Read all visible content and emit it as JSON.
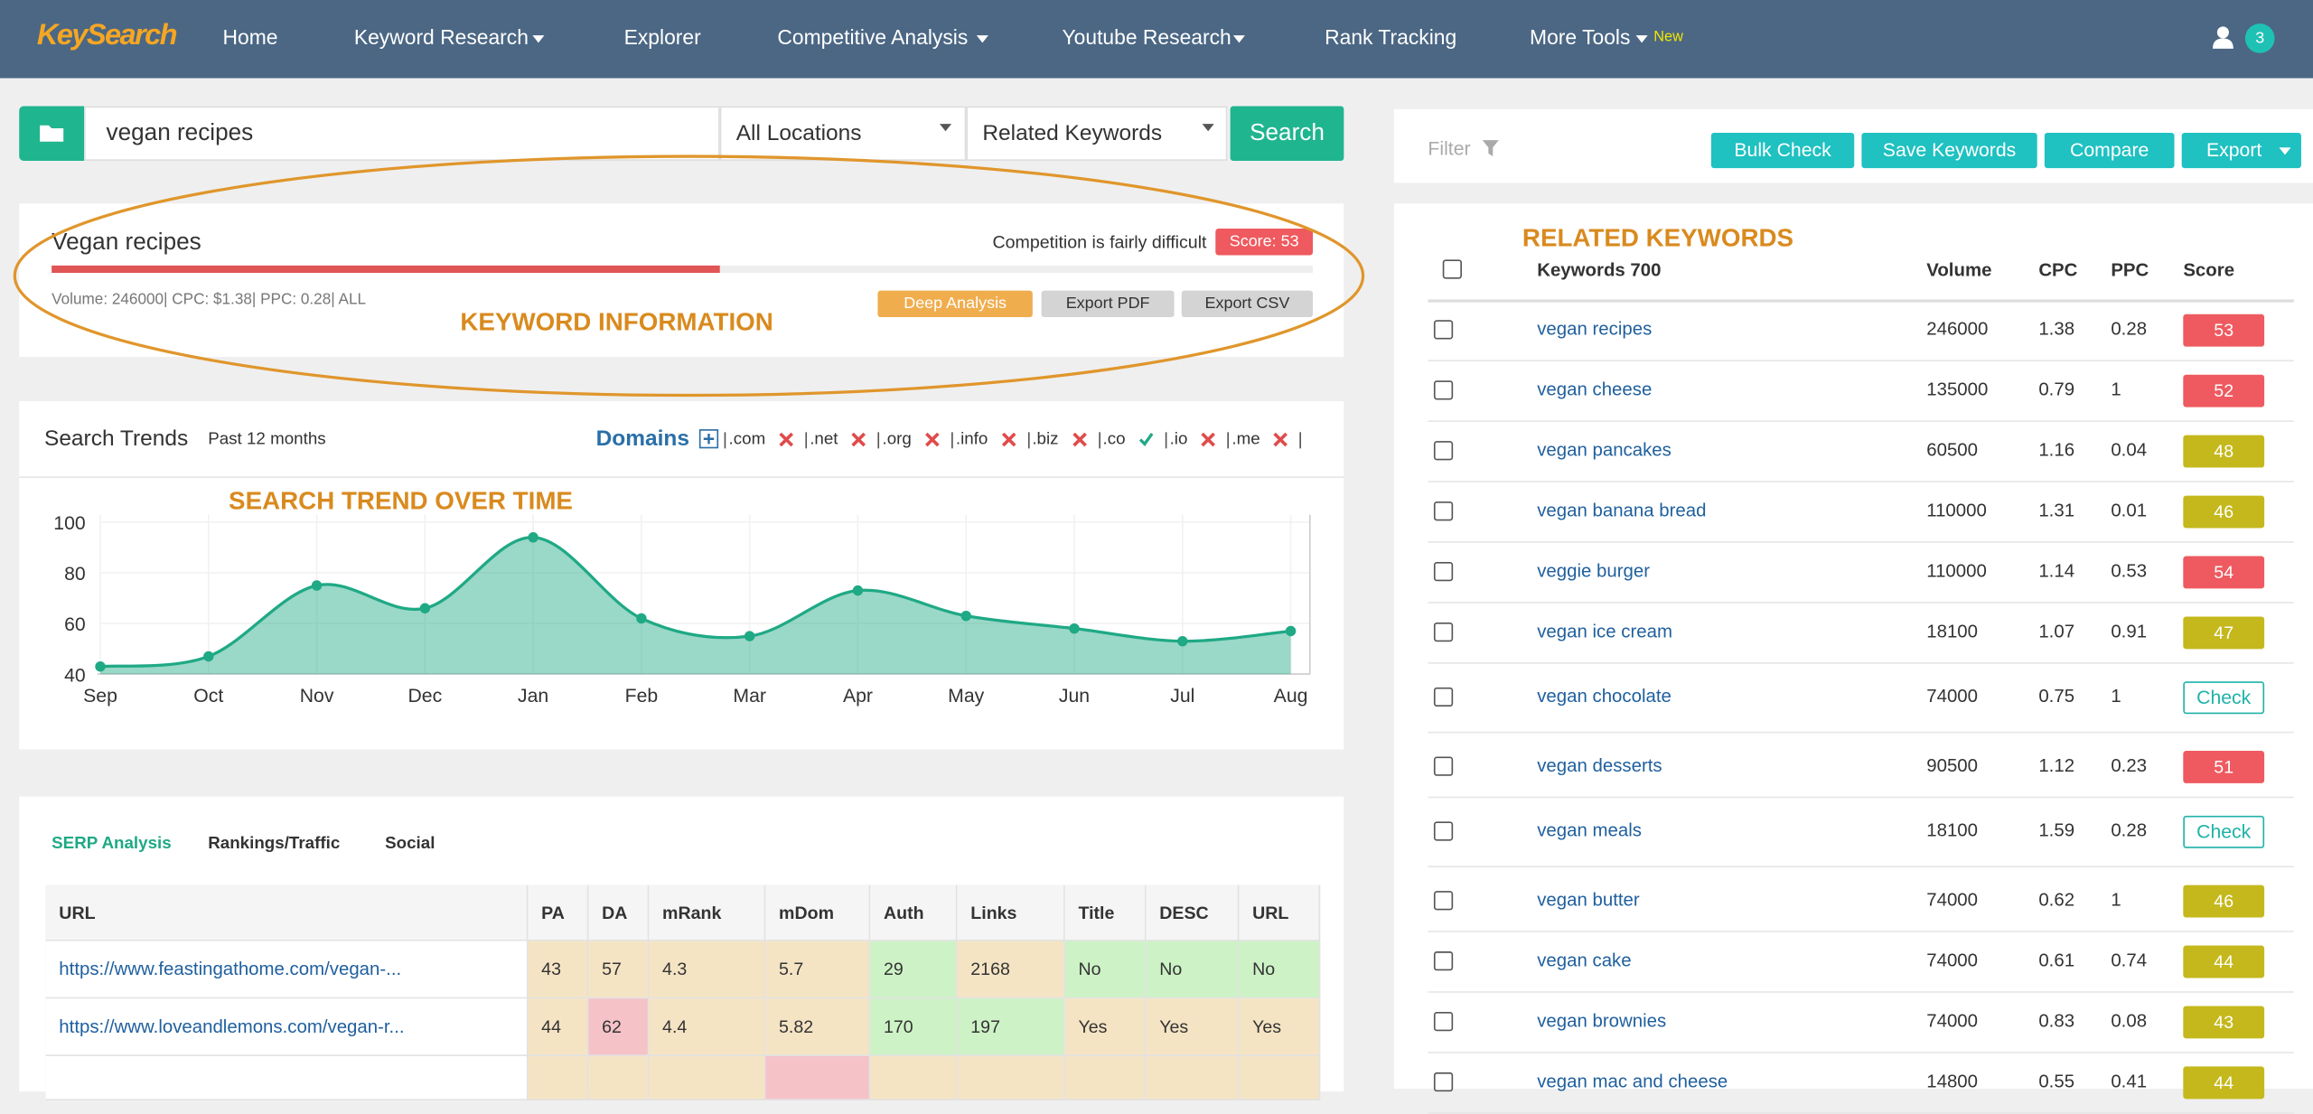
{
  "nav": {
    "logo": "KeySearch",
    "items": [
      "Home",
      "Keyword Research",
      "Explorer",
      "Competitive Analysis",
      "Youtube Research",
      "Rank Tracking",
      "More Tools"
    ],
    "new_badge": "New",
    "notifications": "3"
  },
  "search": {
    "query": "vegan recipes",
    "location": "All Locations",
    "mode": "Related Keywords",
    "button": "Search"
  },
  "keyword_info": {
    "title": "Vegan recipes",
    "competition": "Competition is fairly difficult",
    "score": 53,
    "score_label": "Score: 53",
    "stats": "Volume: 246000| CPC: $1.38| PPC: 0.28| ALL",
    "buttons": [
      "Deep Analysis",
      "Export PDF",
      "Export CSV"
    ],
    "annotation": "KEYWORD INFORMATION"
  },
  "trends": {
    "title": "Search Trends",
    "subtitle": "Past 12 months",
    "domains_label": "Domains",
    "domains": [
      {
        "name": ".com",
        "available": false
      },
      {
        "name": ".net",
        "available": false
      },
      {
        "name": ".org",
        "available": false
      },
      {
        "name": ".info",
        "available": false
      },
      {
        "name": ".biz",
        "available": false
      },
      {
        "name": ".co",
        "available": true
      },
      {
        "name": ".io",
        "available": false
      },
      {
        "name": ".me",
        "available": false
      }
    ],
    "annotation": "SEARCH TREND OVER TIME",
    "chart_data": {
      "type": "area",
      "categories": [
        "Sep",
        "Oct",
        "Nov",
        "Dec",
        "Jan",
        "Feb",
        "Mar",
        "Apr",
        "May",
        "Jun",
        "Jul",
        "Aug"
      ],
      "values": [
        43,
        47,
        75,
        66,
        94,
        62,
        55,
        73,
        63,
        58,
        53,
        57
      ],
      "ylim": [
        40,
        100
      ],
      "yticks": [
        40,
        60,
        80,
        100
      ],
      "color": "#1fa985"
    }
  },
  "serp": {
    "tabs": [
      "SERP Analysis",
      "Rankings/Traffic",
      "Social"
    ],
    "columns": [
      "URL",
      "PA",
      "DA",
      "mRank",
      "mDom",
      "Auth",
      "Links",
      "Title",
      "DESC",
      "URL"
    ],
    "rows": [
      [
        "https://www.feastingathome.com/vegan-...",
        43,
        57,
        4.3,
        5.7,
        29,
        2168,
        "No",
        "No",
        "No"
      ],
      [
        "https://www.loveandlemons.com/vegan-r...",
        44,
        62,
        4.4,
        5.82,
        170,
        197,
        "Yes",
        "Yes",
        "Yes"
      ]
    ],
    "cell_colors": [
      [
        "#ffffff",
        "#f5e4c4",
        "#f5e4c4",
        "#f5e4c4",
        "#f5e4c4",
        "#cdf2c6",
        "#f5e4c4",
        "#cdf2c6",
        "#cdf2c6",
        "#cdf2c6"
      ],
      [
        "#ffffff",
        "#f5e4c4",
        "#f5c2c8",
        "#f5e4c4",
        "#f5e4c4",
        "#cdf2c6",
        "#cdf2c6",
        "#f5e4c4",
        "#f5e4c4",
        "#f5e4c4"
      ]
    ]
  },
  "filter": {
    "label": "Filter",
    "buttons": [
      "Bulk Check",
      "Save Keywords",
      "Compare",
      "Export"
    ]
  },
  "related": {
    "annotation": "RELATED KEYWORDS",
    "columns": [
      "Keywords 700",
      "Volume",
      "CPC",
      "PPC",
      "Score"
    ],
    "rows": [
      {
        "keyword": "vegan recipes",
        "volume": 246000,
        "cpc": 1.38,
        "ppc": 0.28,
        "score": 53,
        "score_color": "#ee5a5f"
      },
      {
        "keyword": "vegan cheese",
        "volume": 135000,
        "cpc": 0.79,
        "ppc": 1,
        "score": 52,
        "score_color": "#ee5a5f"
      },
      {
        "keyword": "vegan pancakes",
        "volume": 60500,
        "cpc": 1.16,
        "ppc": 0.04,
        "score": 48,
        "score_color": "#c4b81c"
      },
      {
        "keyword": "vegan banana bread",
        "volume": 110000,
        "cpc": 1.31,
        "ppc": 0.01,
        "score": 46,
        "score_color": "#c4b81c"
      },
      {
        "keyword": "veggie burger",
        "volume": 110000,
        "cpc": 1.14,
        "ppc": 0.53,
        "score": 54,
        "score_color": "#ee5a5f"
      },
      {
        "keyword": "vegan ice cream",
        "volume": 18100,
        "cpc": 1.07,
        "ppc": 0.91,
        "score": 47,
        "score_color": "#c4b81c"
      },
      {
        "keyword": "vegan chocolate",
        "volume": 74000,
        "cpc": 0.75,
        "ppc": 1,
        "score": "Check",
        "score_color": "#1fb3a9"
      },
      {
        "keyword": "vegan desserts",
        "volume": 90500,
        "cpc": 1.12,
        "ppc": 0.23,
        "score": 51,
        "score_color": "#ee5a5f"
      },
      {
        "keyword": "vegan meals",
        "volume": 18100,
        "cpc": 1.59,
        "ppc": 0.28,
        "score": "Check",
        "score_color": "#1fb3a9"
      },
      {
        "keyword": "vegan butter",
        "volume": 74000,
        "cpc": 0.62,
        "ppc": 1,
        "score": 46,
        "score_color": "#c4b81c"
      },
      {
        "keyword": "vegan cake",
        "volume": 74000,
        "cpc": 0.61,
        "ppc": 0.74,
        "score": 44,
        "score_color": "#c4b81c"
      },
      {
        "keyword": "vegan brownies",
        "volume": 74000,
        "cpc": 0.83,
        "ppc": 0.08,
        "score": 43,
        "score_color": "#c4b81c"
      },
      {
        "keyword": "vegan mac and cheese",
        "volume": 14800,
        "cpc": 0.55,
        "ppc": 0.41,
        "score": 44,
        "score_color": "#c4b81c"
      }
    ]
  }
}
